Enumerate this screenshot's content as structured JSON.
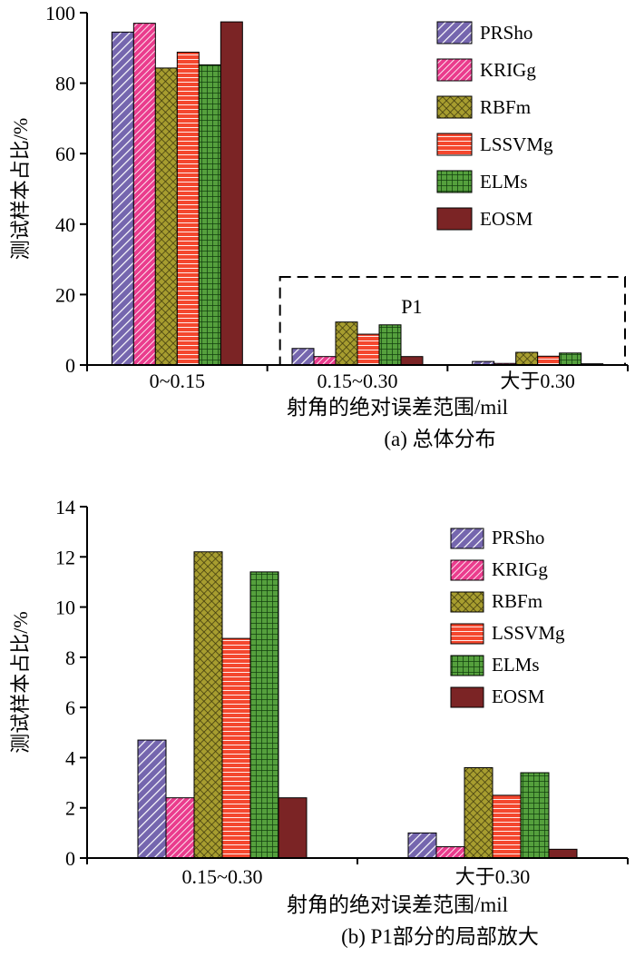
{
  "figure": {
    "background": "#ffffff"
  },
  "chart_data": [
    {
      "id": "a",
      "type": "bar",
      "caption": "(a) 总体分布",
      "xlabel": "射角的绝对误差范围/mil",
      "ylabel": "测试样本占比/%",
      "ylim": [
        0,
        100
      ],
      "yticks": [
        0,
        20,
        40,
        60,
        80,
        100
      ],
      "categories": [
        "0~0.15",
        "0.15~0.30",
        "大于0.30"
      ],
      "legend": {
        "position": "upper-right"
      },
      "annotation": {
        "label": "P1",
        "y_top": 25,
        "from_category": 1
      },
      "series": [
        {
          "name": "PRSho",
          "values": [
            94.5,
            4.7,
            1.0
          ],
          "color": "#7566ae",
          "hatch": "diag",
          "hatch_color": "#ffffff",
          "hatch_size": 7,
          "hatch_width": 2.4
        },
        {
          "name": "KRIGg",
          "values": [
            97.0,
            2.4,
            0.45
          ],
          "color": "#ea3c8d",
          "hatch": "diag",
          "hatch_color": "#ffffff",
          "hatch_size": 5,
          "hatch_width": 1.7
        },
        {
          "name": "RBFm",
          "values": [
            84.3,
            12.2,
            3.6
          ],
          "color": "#a79d2f",
          "hatch": "cross-diag",
          "hatch_color": "#3f3a0e",
          "hatch_size": 6,
          "hatch_width": 1.5
        },
        {
          "name": "LSSVMg",
          "values": [
            88.8,
            8.75,
            2.5
          ],
          "color": "#f4472e",
          "hatch": "horiz",
          "hatch_color": "#ffffff",
          "hatch_size": 5,
          "hatch_width": 1.8
        },
        {
          "name": "ELMs",
          "values": [
            85.2,
            11.4,
            3.4
          ],
          "color": "#55a03d",
          "hatch": "grid",
          "hatch_color": "#123f0e",
          "hatch_size": 6,
          "hatch_width": 1.5
        },
        {
          "name": "EOSM",
          "values": [
            97.4,
            2.4,
            0.35
          ],
          "color": "#7b2425",
          "hatch": "solid",
          "hatch_color": "",
          "hatch_size": 0,
          "hatch_width": 0
        }
      ]
    },
    {
      "id": "b",
      "type": "bar",
      "caption": "(b) P1部分的局部放大",
      "xlabel": "射角的绝对误差范围/mil",
      "ylabel": "测试样本占比/%",
      "ylim": [
        0,
        14
      ],
      "yticks": [
        0,
        2,
        4,
        6,
        8,
        10,
        12,
        14
      ],
      "categories": [
        "0.15~0.30",
        "大于0.30"
      ],
      "legend": {
        "position": "upper-right"
      },
      "series": [
        {
          "name": "PRSho",
          "values": [
            4.7,
            1.0
          ],
          "color": "#7566ae",
          "hatch": "diag",
          "hatch_color": "#ffffff",
          "hatch_size": 7,
          "hatch_width": 2.4
        },
        {
          "name": "KRIGg",
          "values": [
            2.4,
            0.45
          ],
          "color": "#ea3c8d",
          "hatch": "diag",
          "hatch_color": "#ffffff",
          "hatch_size": 5,
          "hatch_width": 1.7
        },
        {
          "name": "RBFm",
          "values": [
            12.2,
            3.6
          ],
          "color": "#a79d2f",
          "hatch": "cross-diag",
          "hatch_color": "#3f3a0e",
          "hatch_size": 6,
          "hatch_width": 1.5
        },
        {
          "name": "LSSVMg",
          "values": [
            8.75,
            2.5
          ],
          "color": "#f4472e",
          "hatch": "horiz",
          "hatch_color": "#ffffff",
          "hatch_size": 5,
          "hatch_width": 1.8
        },
        {
          "name": "ELMs",
          "values": [
            11.4,
            3.4
          ],
          "color": "#55a03d",
          "hatch": "grid",
          "hatch_color": "#123f0e",
          "hatch_size": 6,
          "hatch_width": 1.5
        },
        {
          "name": "EOSM",
          "values": [
            2.4,
            0.35
          ],
          "color": "#7b2425",
          "hatch": "solid",
          "hatch_color": "",
          "hatch_size": 0,
          "hatch_width": 0
        }
      ]
    }
  ]
}
